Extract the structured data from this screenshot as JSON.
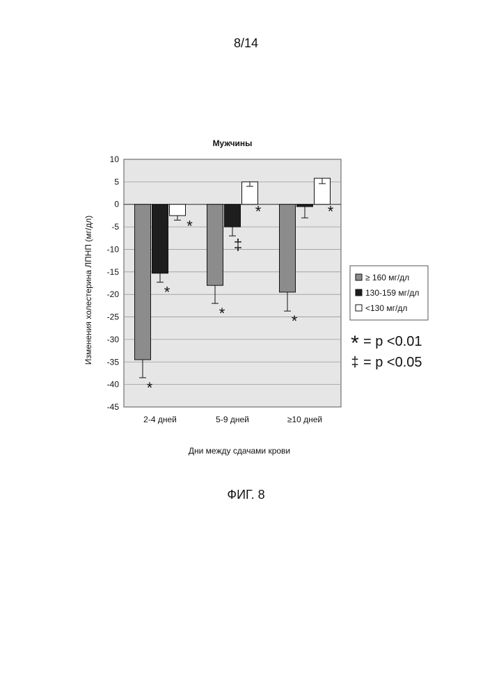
{
  "page": {
    "page_number": "8/14",
    "figure_caption": "ФИГ. 8"
  },
  "colors": {
    "plot_background": "#e6e6e6",
    "series_high": "#8c8c8c",
    "series_mid": "#1e1e1e",
    "series_low": "#ffffff",
    "gridline": "#9a9a9a"
  },
  "chart_data": {
    "type": "bar",
    "title": "Мужчины",
    "xlabel": "Дни между сдачами крови",
    "ylabel": "Изменения холестерина ЛПНП (мг/дл)",
    "ylim": [
      -45,
      10
    ],
    "yticks": [
      10,
      5,
      0,
      -5,
      -10,
      -15,
      -20,
      -25,
      -30,
      -35,
      -40,
      -45
    ],
    "grid": true,
    "legend_position": "right",
    "categories": [
      "2-4  дней",
      "5-9  дней",
      "≥10  дней"
    ],
    "series": [
      {
        "name": "≥ 160  мг/дл",
        "color": "#8c8c8c",
        "values": [
          -34.5,
          -18,
          -19.5
        ],
        "err_down": [
          4,
          4,
          4.2
        ],
        "marks": [
          "*",
          "*",
          "*"
        ]
      },
      {
        "name": "130-159 мг/дл",
        "color": "#1e1e1e",
        "values": [
          -15.3,
          -5,
          -0.5
        ],
        "err_down": [
          2,
          2,
          2.5
        ],
        "marks": [
          "*",
          "‡",
          ""
        ]
      },
      {
        "name": "<130 мг/дл",
        "color": "#ffffff",
        "values": [
          -2.5,
          5,
          5.8
        ],
        "err_down": [
          1,
          1,
          1.2
        ],
        "marks": [
          "*",
          "*",
          "*"
        ]
      }
    ],
    "notes": [
      {
        "symbol": "*",
        "text": "= p <0.01"
      },
      {
        "symbol": "‡",
        "text": "= p <0.05"
      }
    ]
  }
}
